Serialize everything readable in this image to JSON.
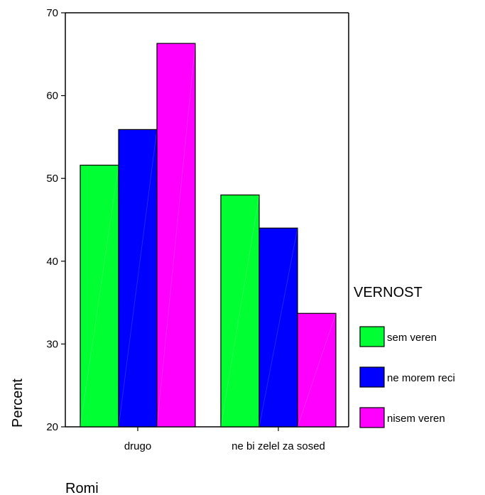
{
  "chart_data": {
    "type": "bar",
    "title": "",
    "xlabel": "Romi",
    "ylabel": "Percent",
    "categories": [
      "drugo",
      "ne bi zelel za sosed"
    ],
    "ylim": [
      20,
      70
    ],
    "yticks": [
      20,
      30,
      40,
      50,
      60,
      70
    ],
    "grid": false,
    "legend_title": "VERNOST",
    "legend_position": "right",
    "series": [
      {
        "name": "sem veren",
        "values": [
          51.6,
          48.0
        ],
        "color": "#00ff33"
      },
      {
        "name": "ne morem reci",
        "values": [
          55.9,
          44.0
        ],
        "color": "#0000ff"
      },
      {
        "name": "nisem veren",
        "values": [
          66.3,
          33.7
        ],
        "color": "#ff00ff"
      }
    ]
  }
}
